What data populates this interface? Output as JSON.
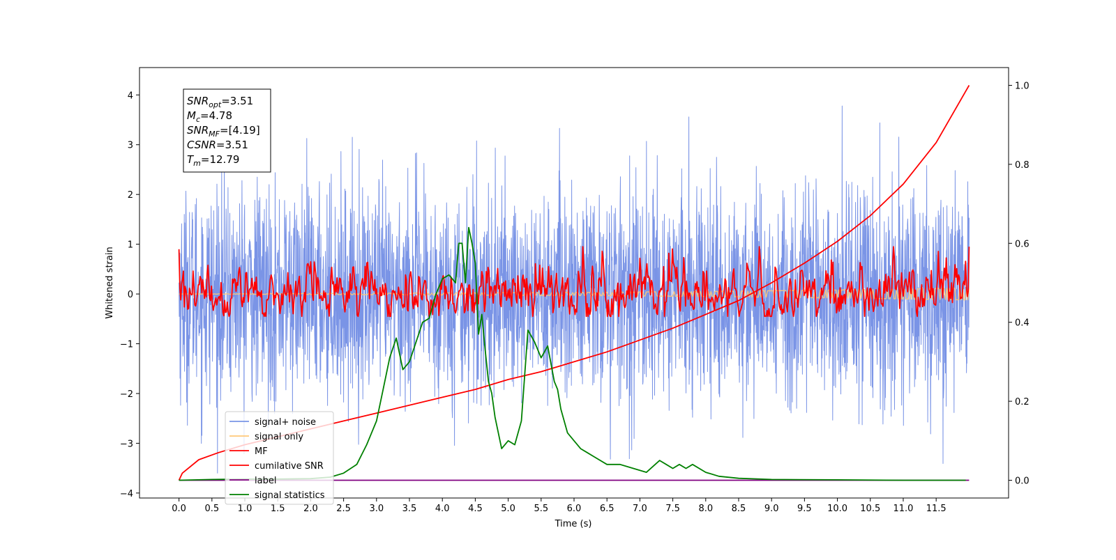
{
  "chart_data": {
    "type": "line",
    "xlabel": "Time (s)",
    "ylabel": "Whitened strain",
    "xlim": [
      -0.6,
      12.6
    ],
    "ylim": [
      -4.1,
      4.55
    ],
    "ylim_right": [
      -0.045,
      1.045
    ],
    "grid": false,
    "legend_placement": "lower-left",
    "x_ticks": [
      "0.0",
      "0.5",
      "1.0",
      "1.5",
      "2.0",
      "2.5",
      "3.0",
      "3.5",
      "4.0",
      "4.5",
      "5.0",
      "5.5",
      "6.0",
      "6.5",
      "7.0",
      "7.5",
      "8.0",
      "8.5",
      "9.0",
      "9.5",
      "10.0",
      "10.5",
      "11.0",
      "11.5"
    ],
    "y_ticks": [
      "−4",
      "−3",
      "−2",
      "−1",
      "0",
      "1",
      "2",
      "3",
      "4"
    ],
    "y_ticks_right": [
      "0.0",
      "0.2",
      "0.4",
      "0.6",
      "0.8",
      "1.0"
    ],
    "annotations": [
      {
        "sym": "SNR",
        "sub": "opt",
        "val": "=3.51"
      },
      {
        "sym": "M",
        "sub": "c",
        "val": "=4.78"
      },
      {
        "sym": "SNR",
        "sub": "MF",
        "val": "=[4.19]"
      },
      {
        "sym": "CSNR",
        "sub": "",
        "val": "=3.51"
      },
      {
        "sym": "T",
        "sub": "m",
        "val": "=12.79"
      }
    ],
    "series": [
      {
        "name": "signal+ noise",
        "color": "#7a94e6",
        "axis": "left",
        "style": "noise",
        "x_range": [
          0,
          12
        ],
        "amplitude": 1.9
      },
      {
        "name": "signal only",
        "color": "#ffc878",
        "axis": "left",
        "style": "signal",
        "x": [
          0,
          2,
          4,
          6,
          8,
          10,
          12
        ],
        "values": [
          0.0,
          0.01,
          0.02,
          0.03,
          0.05,
          0.08,
          0.12
        ]
      },
      {
        "name": "MF",
        "color": "#ff0000",
        "axis": "left",
        "style": "mf",
        "x_range": [
          0,
          12
        ],
        "amplitude": 0.45
      },
      {
        "name": "cumilative SNR",
        "color": "#ff0000",
        "axis": "right",
        "x": [
          0,
          0.05,
          0.3,
          0.6,
          1.0,
          1.5,
          2.0,
          2.5,
          3.0,
          3.5,
          4.0,
          4.5,
          5.0,
          5.5,
          6.0,
          6.5,
          7.0,
          7.5,
          8.0,
          8.5,
          9.0,
          9.5,
          10.0,
          10.5,
          11.0,
          11.5,
          12.0
        ],
        "values": [
          0.0,
          0.018,
          0.052,
          0.07,
          0.09,
          0.11,
          0.13,
          0.15,
          0.17,
          0.19,
          0.21,
          0.23,
          0.255,
          0.275,
          0.3,
          0.325,
          0.355,
          0.385,
          0.42,
          0.455,
          0.5,
          0.55,
          0.605,
          0.67,
          0.75,
          0.855,
          1.0
        ]
      },
      {
        "name": "label",
        "color": "#800080",
        "axis": "right",
        "x": [
          0,
          12
        ],
        "values": [
          0.0,
          0.0
        ]
      },
      {
        "name": "signal statistics",
        "color": "#008000",
        "axis": "right",
        "x": [
          0.0,
          0.5,
          1.0,
          1.5,
          2.0,
          2.3,
          2.5,
          2.7,
          2.85,
          3.0,
          3.1,
          3.2,
          3.3,
          3.4,
          3.5,
          3.6,
          3.7,
          3.8,
          3.9,
          4.0,
          4.1,
          4.2,
          4.25,
          4.3,
          4.35,
          4.4,
          4.45,
          4.5,
          4.55,
          4.6,
          4.65,
          4.7,
          4.75,
          4.8,
          4.9,
          5.0,
          5.1,
          5.2,
          5.3,
          5.4,
          5.5,
          5.6,
          5.7,
          5.75,
          5.8,
          5.9,
          6.0,
          6.1,
          6.2,
          6.3,
          6.5,
          6.7,
          6.9,
          7.1,
          7.3,
          7.4,
          7.5,
          7.6,
          7.7,
          7.8,
          8.0,
          8.2,
          8.5,
          9.0,
          10.0,
          11.0,
          11.95
        ],
        "values": [
          0.0,
          0.002,
          0.003,
          0.003,
          0.004,
          0.008,
          0.018,
          0.04,
          0.09,
          0.15,
          0.23,
          0.31,
          0.36,
          0.28,
          0.3,
          0.35,
          0.4,
          0.41,
          0.47,
          0.51,
          0.52,
          0.5,
          0.6,
          0.6,
          0.5,
          0.64,
          0.6,
          0.55,
          0.37,
          0.42,
          0.33,
          0.25,
          0.22,
          0.16,
          0.08,
          0.1,
          0.09,
          0.15,
          0.38,
          0.35,
          0.31,
          0.34,
          0.25,
          0.23,
          0.18,
          0.12,
          0.1,
          0.08,
          0.07,
          0.06,
          0.04,
          0.04,
          0.03,
          0.02,
          0.05,
          0.04,
          0.03,
          0.04,
          0.03,
          0.04,
          0.02,
          0.01,
          0.005,
          0.002,
          0.001,
          0.0,
          0.0
        ]
      }
    ]
  }
}
